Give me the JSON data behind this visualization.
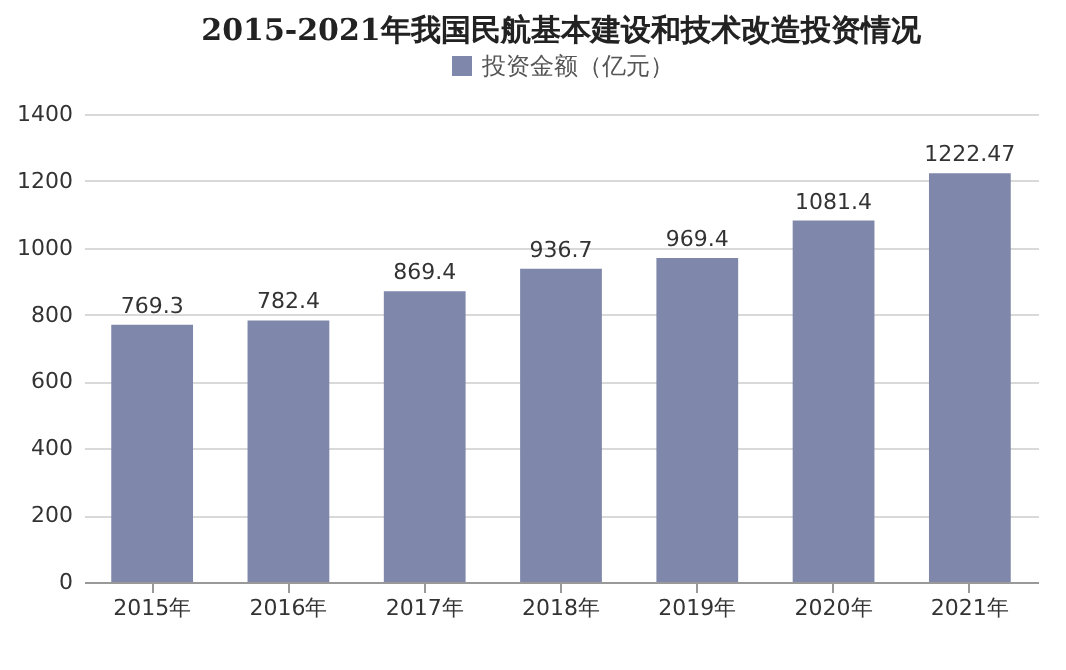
{
  "chart_data": {
    "type": "bar",
    "title": "2015-2021年我国民航基本建设和技术改造投资情况",
    "categories": [
      "2015年",
      "2016年",
      "2017年",
      "2018年",
      "2019年",
      "2020年",
      "2021年"
    ],
    "series": [
      {
        "name": "投资金额（亿元）",
        "color": "#7f87ab",
        "values": [
          769.3,
          782.4,
          869.4,
          936.7,
          969.4,
          1081.4,
          1222.47
        ]
      }
    ],
    "ylim": [
      0,
      1400
    ],
    "yticks": [
      0,
      200,
      400,
      600,
      800,
      1000,
      1200,
      1400
    ],
    "grid": "y",
    "legend": "top",
    "data_labels": true
  }
}
